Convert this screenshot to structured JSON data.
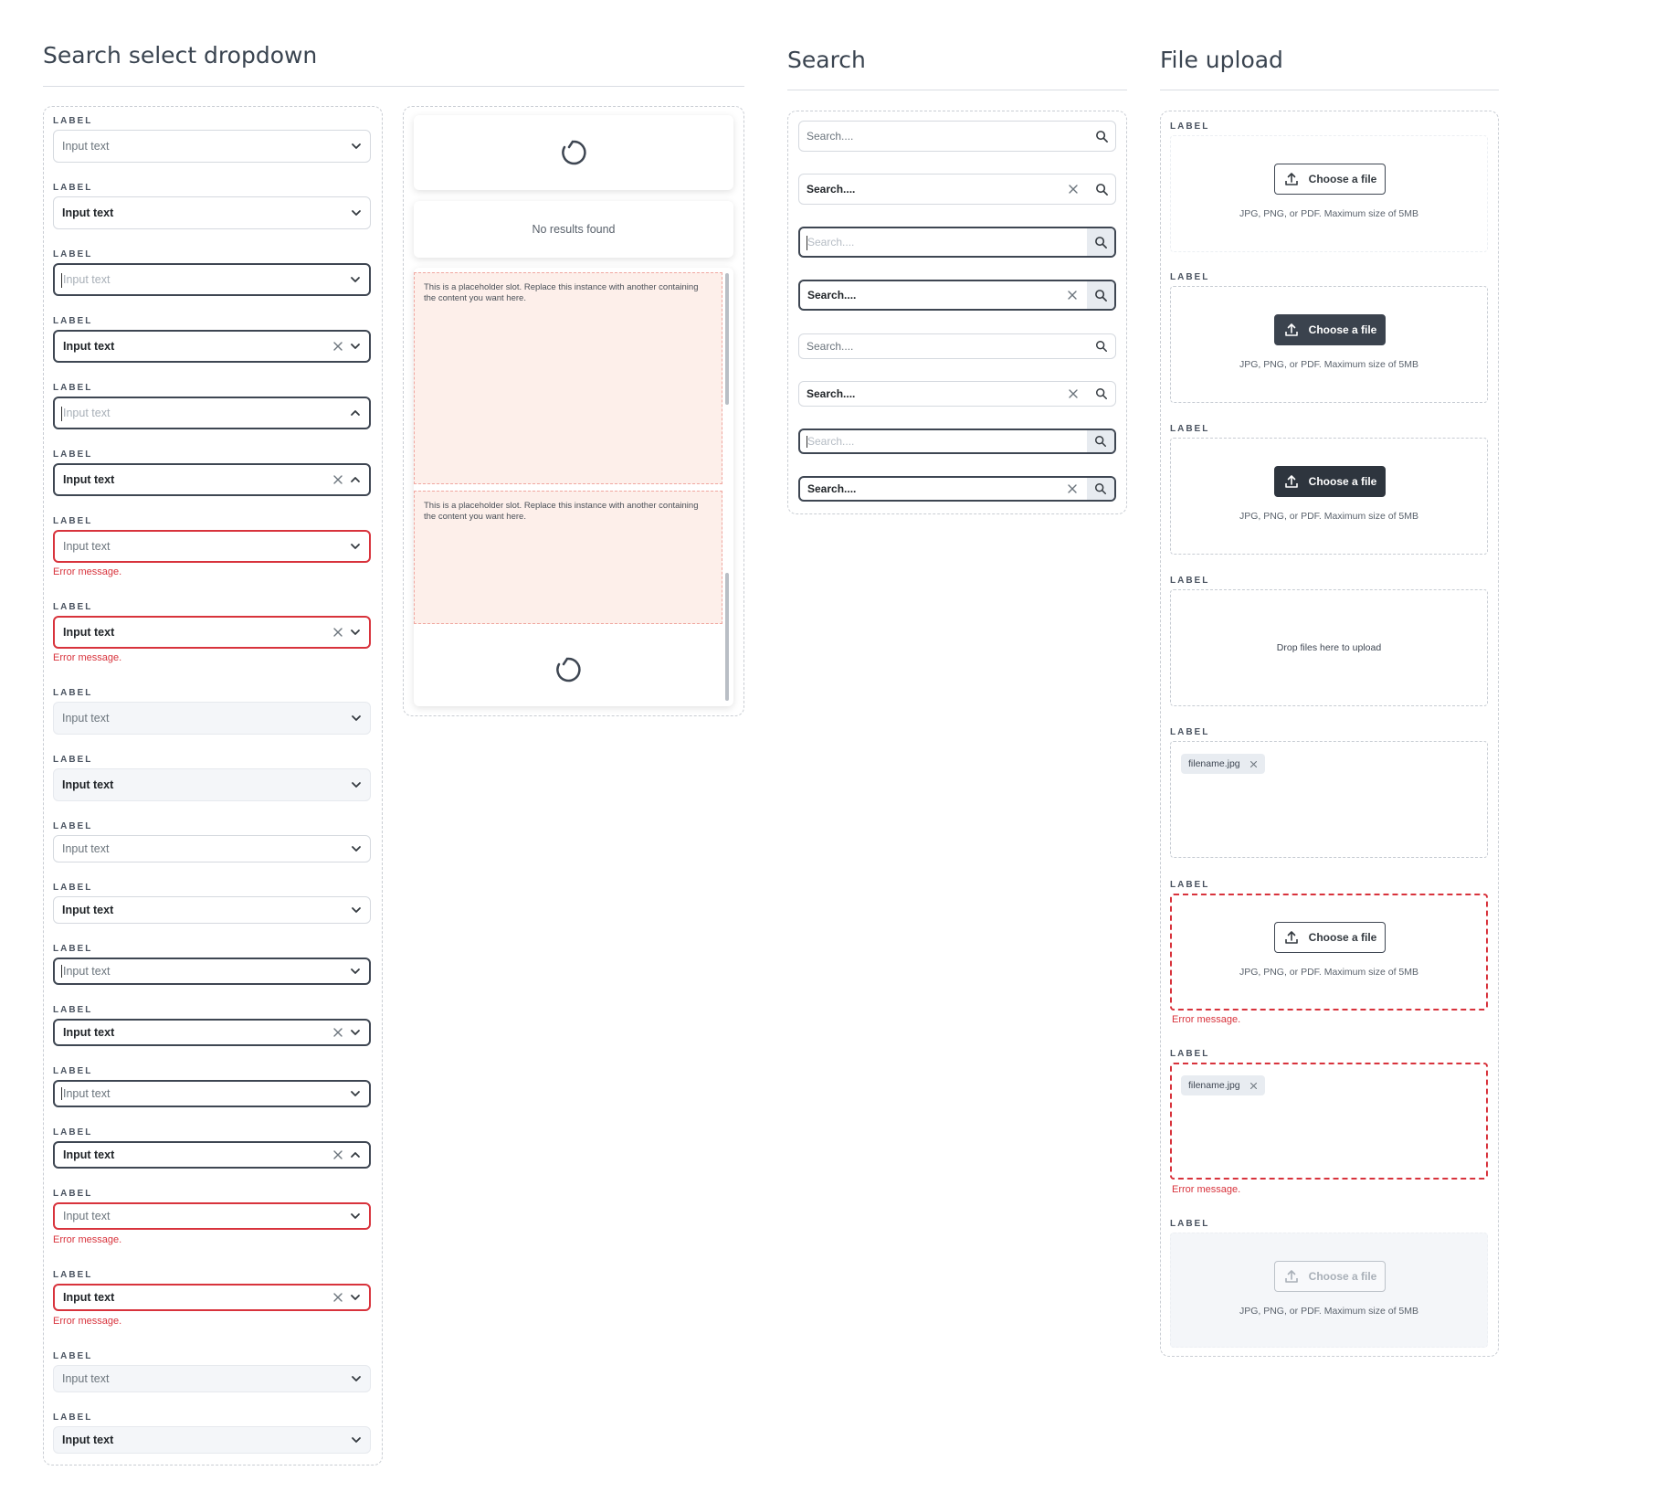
{
  "sections": {
    "search_select": {
      "title": "Search select dropdown"
    },
    "search": {
      "title": "Search"
    },
    "file_upload": {
      "title": "File upload"
    }
  },
  "field": {
    "label": "LABEL",
    "value": "Input text",
    "placeholder": "Input text",
    "error": "Error message."
  },
  "dropdown": {
    "no_results": "No results found",
    "placeholder_slot": "This is a placeholder slot. Replace this instance with another containing the content you want here."
  },
  "search": {
    "placeholder": "Search....",
    "value": "Search...."
  },
  "upload": {
    "button": "Choose a file",
    "hint": "JPG, PNG, or PDF. Maximum size of 5MB",
    "drop": "Drop files here to upload",
    "filename": "filename.jpg",
    "error": "Error message."
  },
  "icons": [
    "chevron-down-icon",
    "chevron-up-icon",
    "clear-icon",
    "search-icon",
    "upload-icon",
    "spinner-icon"
  ],
  "colors": {
    "accent": "#3e4652",
    "error": "#d8333c",
    "slot": "#fdefea",
    "disabled": "#f4f6f9"
  }
}
